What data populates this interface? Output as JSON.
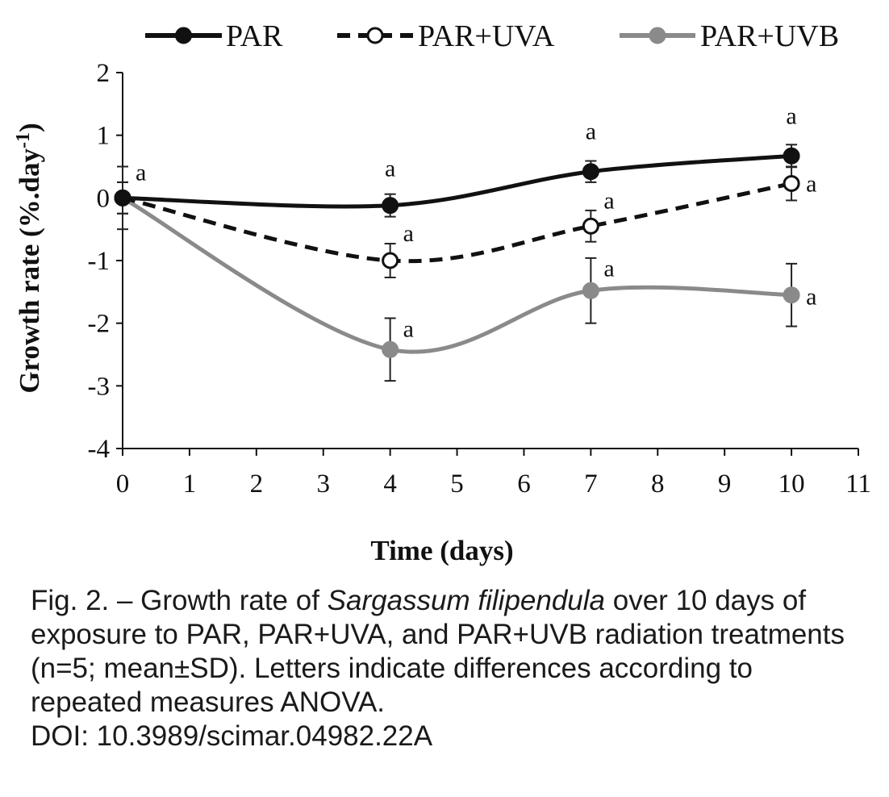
{
  "chart_data": {
    "type": "line",
    "xlabel": "Time (days)",
    "ylabel": "Growth rate (%.day",
    "ylabel_sup": "-1",
    "ylabel_close": ")",
    "xlim": [
      0,
      11
    ],
    "ylim": [
      -4,
      2
    ],
    "xticks": [
      "0",
      "1",
      "2",
      "3",
      "4",
      "5",
      "6",
      "7",
      "8",
      "9",
      "10",
      "11"
    ],
    "yticks": [
      "2",
      "1",
      "0",
      "-1",
      "-2",
      "-3",
      "-4"
    ],
    "grid": false,
    "legend_position": "top",
    "x": [
      0,
      4,
      7,
      10
    ],
    "series": [
      {
        "name": "PAR",
        "values": [
          0,
          -0.12,
          0.42,
          0.67
        ],
        "errors": [
          0.25,
          0.18,
          0.17,
          0.18
        ],
        "letters": [
          "a",
          "a",
          "a",
          "a"
        ],
        "color": "#111111",
        "dash": "solid",
        "marker": "filled"
      },
      {
        "name": "PAR+UVA",
        "values": [
          0,
          -1.0,
          -0.45,
          0.23
        ],
        "errors": [
          0.25,
          0.27,
          0.25,
          0.27
        ],
        "letters": [
          "",
          "a",
          "a",
          "a"
        ],
        "color": "#111111",
        "dash": "dashed",
        "marker": "open"
      },
      {
        "name": "PAR+UVB",
        "values": [
          0,
          -2.42,
          -1.48,
          -1.55
        ],
        "errors": [
          0.5,
          0.5,
          0.52,
          0.5
        ],
        "letters": [
          "",
          "a",
          "a",
          "a"
        ],
        "color": "#8a8a8a",
        "dash": "solid",
        "marker": "gray"
      }
    ]
  },
  "caption": {
    "prefix": "Fig. 2. – Growth rate of ",
    "species": "Sargassum filipendula",
    "rest": " over 10 days of exposure to PAR, PAR+UVA, and PAR+UVB radiation treatments (n=5; mean±SD). Letters indicate differences according to repeated measures ANOVA.",
    "doi": "DOI: 10.3989/scimar.04982.22A"
  }
}
